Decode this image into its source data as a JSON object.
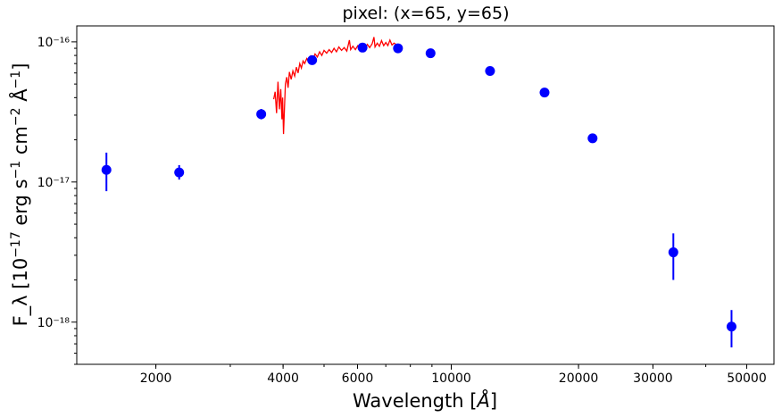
{
  "chart_data": {
    "type": "scatter",
    "title": "pixel: (x=65, y=65)",
    "xlabel": "Wavelength [Å]",
    "ylabel": "F_λ [10^−17 erg s^−1 cm^−2 Å^−1]",
    "xscale": "log",
    "yscale": "log",
    "xlim": [
      1300,
      58000
    ],
    "ylim": [
      5e-19,
      1.3e-16
    ],
    "grid": false,
    "x_ticks": [
      {
        "value": 2000,
        "label": "2000"
      },
      {
        "value": 4000,
        "label": "4000"
      },
      {
        "value": 6000,
        "label": "6000"
      },
      {
        "value": 10000,
        "label": "10000"
      },
      {
        "value": 20000,
        "label": "20000"
      },
      {
        "value": 30000,
        "label": "30000"
      },
      {
        "value": 50000,
        "label": "50000"
      }
    ],
    "y_ticks": [
      {
        "value": 1e-18,
        "label": "10⁻¹⁸"
      },
      {
        "value": 1e-17,
        "label": "10⁻¹⁷"
      },
      {
        "value": 1e-16,
        "label": "10⁻¹⁶"
      }
    ],
    "series": [
      {
        "type": "errorbar-scatter",
        "color": "#0000ff",
        "points": [
          {
            "x": 1528,
            "y": 1.22e-17,
            "ylo": 8.6e-18,
            "yhi": 1.62e-17
          },
          {
            "x": 2271,
            "y": 1.17e-17,
            "ylo": 1.04e-17,
            "yhi": 1.32e-17
          },
          {
            "x": 3551,
            "y": 3.05e-17,
            "ylo": 2.8e-17,
            "yhi": 3.32e-17
          },
          {
            "x": 4686,
            "y": 7.4e-17,
            "ylo": 7.1e-17,
            "yhi": 7.7e-17
          },
          {
            "x": 6166,
            "y": 9.1e-17,
            "ylo": 8.8e-17,
            "yhi": 9.4e-17
          },
          {
            "x": 7480,
            "y": 9e-17,
            "ylo": 8.7e-17,
            "yhi": 9.3e-17
          },
          {
            "x": 8932,
            "y": 8.3e-17,
            "ylo": 8e-17,
            "yhi": 8.6e-17
          },
          {
            "x": 12350,
            "y": 6.2e-17,
            "ylo": 6e-17,
            "yhi": 6.4e-17
          },
          {
            "x": 16620,
            "y": 4.35e-17,
            "ylo": 4.2e-17,
            "yhi": 4.5e-17
          },
          {
            "x": 21590,
            "y": 2.05e-17,
            "ylo": 1.92e-17,
            "yhi": 2.2e-17
          },
          {
            "x": 33526,
            "y": 3.15e-18,
            "ylo": 2e-18,
            "yhi": 4.3e-18
          },
          {
            "x": 46028,
            "y": 9.3e-19,
            "ylo": 6.6e-19,
            "yhi": 1.22e-18
          }
        ]
      },
      {
        "type": "spectrum-line",
        "color": "#ff0000",
        "points": [
          [
            3800,
            3.9e-17
          ],
          [
            3830,
            4.4e-17
          ],
          [
            3860,
            3.1e-17
          ],
          [
            3890,
            5.2e-17
          ],
          [
            3920,
            3.3e-17
          ],
          [
            3950,
            4.6e-17
          ],
          [
            3975,
            2.8e-17
          ],
          [
            3990,
            4e-17
          ],
          [
            4010,
            2.2e-17
          ],
          [
            4030,
            3.4e-17
          ],
          [
            4050,
            5e-17
          ],
          [
            4080,
            5.6e-17
          ],
          [
            4110,
            4.7e-17
          ],
          [
            4140,
            6.1e-17
          ],
          [
            4180,
            5.4e-17
          ],
          [
            4220,
            6.2e-17
          ],
          [
            4260,
            5.7e-17
          ],
          [
            4300,
            6.6e-17
          ],
          [
            4340,
            6e-17
          ],
          [
            4380,
            7e-17
          ],
          [
            4420,
            6.5e-17
          ],
          [
            4460,
            7.3e-17
          ],
          [
            4500,
            7e-17
          ],
          [
            4550,
            7.6e-17
          ],
          [
            4600,
            7.2e-17
          ],
          [
            4650,
            7.9e-17
          ],
          [
            4700,
            7.4e-17
          ],
          [
            4760,
            8.2e-17
          ],
          [
            4820,
            7.8e-17
          ],
          [
            4880,
            8.5e-17
          ],
          [
            4940,
            8e-17
          ],
          [
            5000,
            8.7e-17
          ],
          [
            5070,
            8.3e-17
          ],
          [
            5140,
            8.8e-17
          ],
          [
            5210,
            8.4e-17
          ],
          [
            5280,
            9e-17
          ],
          [
            5350,
            8.5e-17
          ],
          [
            5420,
            9.2e-17
          ],
          [
            5500,
            8.7e-17
          ],
          [
            5580,
            9.1e-17
          ],
          [
            5660,
            8.6e-17
          ],
          [
            5740,
            1.03e-16
          ],
          [
            5780,
            8.8e-17
          ],
          [
            5850,
            9.3e-17
          ],
          [
            5930,
            8.8e-17
          ],
          [
            6010,
            9.4e-17
          ],
          [
            6090,
            8.9e-17
          ],
          [
            6170,
            9.5e-17
          ],
          [
            6250,
            9e-17
          ],
          [
            6330,
            9.6e-17
          ],
          [
            6410,
            9.1e-17
          ],
          [
            6500,
            9.7e-17
          ],
          [
            6563,
            1.08e-16
          ],
          [
            6600,
            9.2e-17
          ],
          [
            6680,
            9.8e-17
          ],
          [
            6760,
            9.3e-17
          ],
          [
            6840,
            1.02e-16
          ],
          [
            6920,
            9.4e-17
          ],
          [
            7000,
            9.9e-17
          ],
          [
            7080,
            9.4e-17
          ],
          [
            7160,
            1.03e-16
          ],
          [
            7240,
            9.5e-17
          ],
          [
            7320,
            9.8e-17
          ],
          [
            7400,
            9.6e-17
          ]
        ]
      }
    ]
  }
}
